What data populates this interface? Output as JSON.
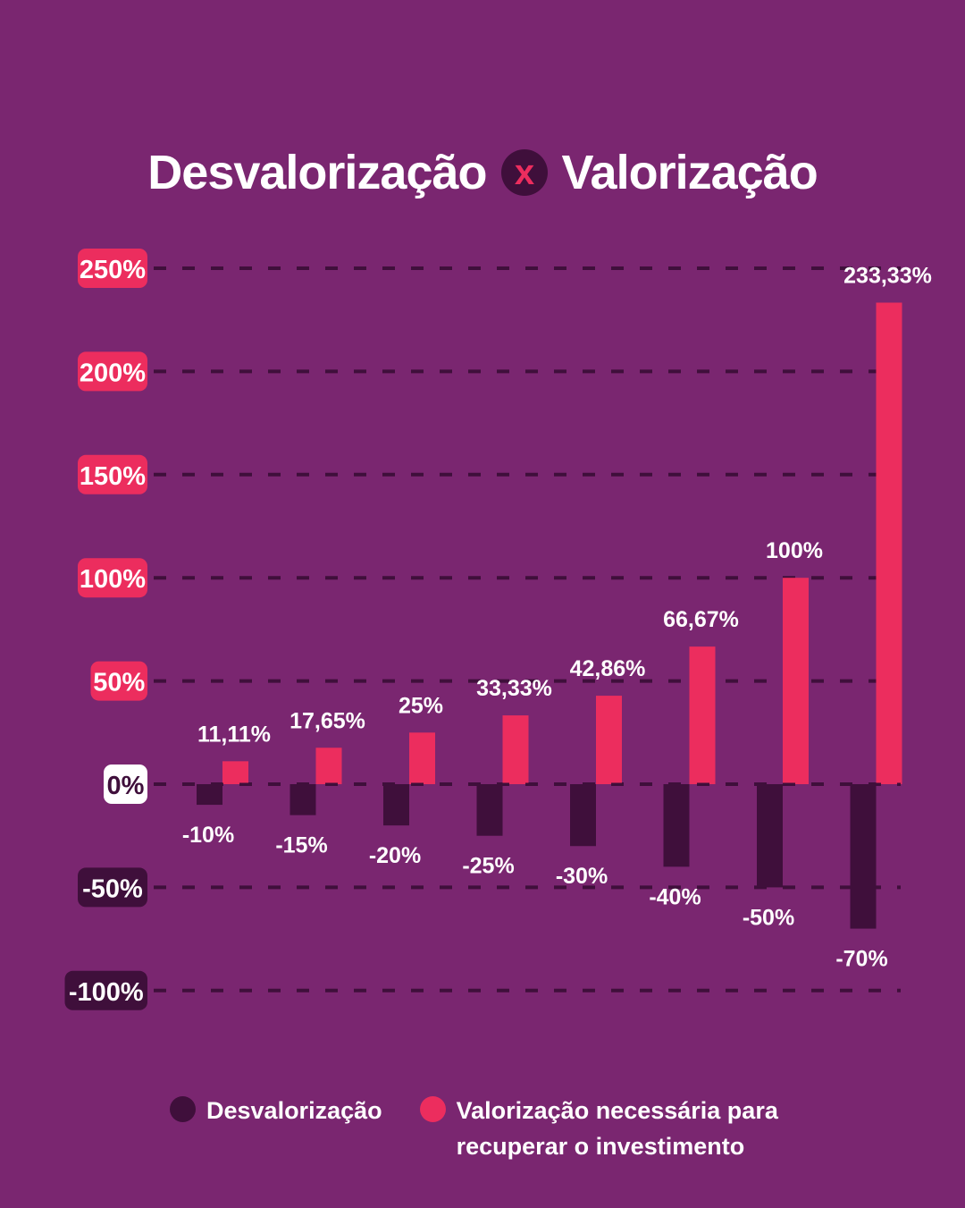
{
  "title": {
    "left": "Desvalorização",
    "separator": "x",
    "right": "Valorização"
  },
  "colors": {
    "background": "#7a2670",
    "depreciation": "#3f0f3b",
    "appreciation": "#ec2d5e",
    "grid": "#3f0f3b",
    "text": "#ffffff"
  },
  "legend": [
    {
      "label": "Desvalorização",
      "color": "#3f0f3b"
    },
    {
      "label": "Valorização necessária para recuperar o investimento",
      "color": "#ec2d5e"
    }
  ],
  "chart_data": {
    "type": "bar",
    "title": "Desvalorização x Valorização",
    "ylim": [
      -100,
      250
    ],
    "yticks": [
      {
        "value": 250,
        "label": "250%"
      },
      {
        "value": 200,
        "label": "200%"
      },
      {
        "value": 150,
        "label": "150%"
      },
      {
        "value": 100,
        "label": "100%"
      },
      {
        "value": 50,
        "label": "50%"
      },
      {
        "value": 0,
        "label": "0%"
      },
      {
        "value": -50,
        "label": "-50%"
      },
      {
        "value": -100,
        "label": "-100%"
      }
    ],
    "grid": true,
    "legend_position": "bottom",
    "series": [
      {
        "name": "Desvalorização",
        "values": [
          -10,
          -15,
          -20,
          -25,
          -30,
          -40,
          -50,
          -70
        ],
        "labels": [
          "-10%",
          "-15%",
          "-20%",
          "-25%",
          "-30%",
          "-40%",
          "-50%",
          "-70%"
        ]
      },
      {
        "name": "Valorização necessária para recuperar o investimento",
        "values": [
          11.11,
          17.65,
          25,
          33.33,
          42.86,
          66.67,
          100,
          233.33
        ],
        "labels": [
          "11,11%",
          "17,65%",
          "25%",
          "33,33%",
          "42,86%",
          "66,67%",
          "100%",
          "233,33%"
        ]
      }
    ]
  }
}
